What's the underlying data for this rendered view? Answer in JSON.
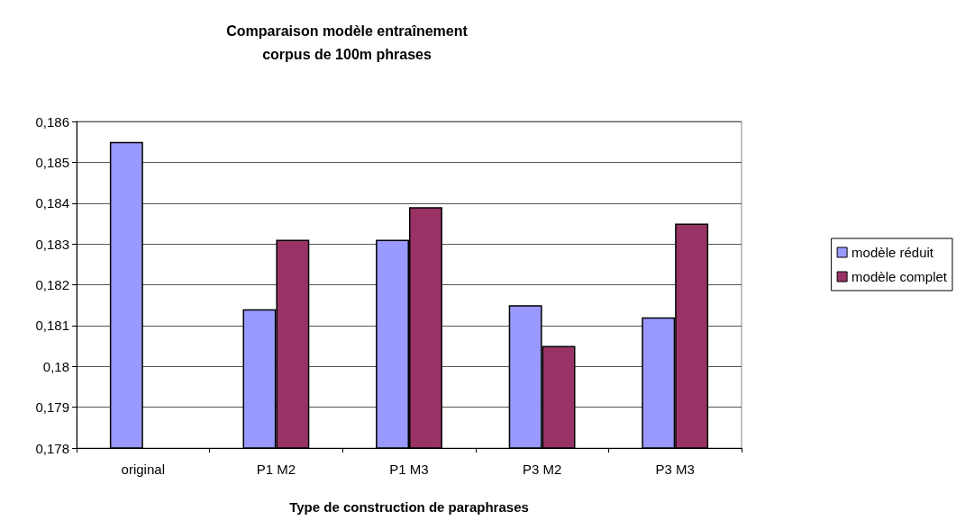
{
  "chart_data": {
    "type": "bar",
    "title": "Comparaison modèle entraînement\ncorpus de 100m phrases",
    "xlabel": "Type de construction de paraphrases",
    "categories": [
      "original",
      "P1 M2",
      "P1 M3",
      "P3 M2",
      "P3 M3"
    ],
    "series": [
      {
        "name": "modèle réduit",
        "color": "#9999ff",
        "values": [
          0.1855,
          0.1814,
          0.1831,
          0.1815,
          0.1812
        ]
      },
      {
        "name": "modèle complet",
        "color": "#993366",
        "values": [
          null,
          0.1831,
          0.1839,
          0.1805,
          0.1835
        ]
      }
    ],
    "ylim": [
      0.178,
      0.186
    ],
    "yticks": [
      {
        "value": 0.178,
        "label": "0,178"
      },
      {
        "value": 0.179,
        "label": "0,179"
      },
      {
        "value": 0.18,
        "label": "0,18"
      },
      {
        "value": 0.181,
        "label": "0,181"
      },
      {
        "value": 0.182,
        "label": "0,182"
      },
      {
        "value": 0.183,
        "label": "0,183"
      },
      {
        "value": 0.184,
        "label": "0,184"
      },
      {
        "value": 0.185,
        "label": "0,185"
      },
      {
        "value": 0.186,
        "label": "0,186"
      }
    ],
    "grid": "y",
    "legend": "right"
  }
}
